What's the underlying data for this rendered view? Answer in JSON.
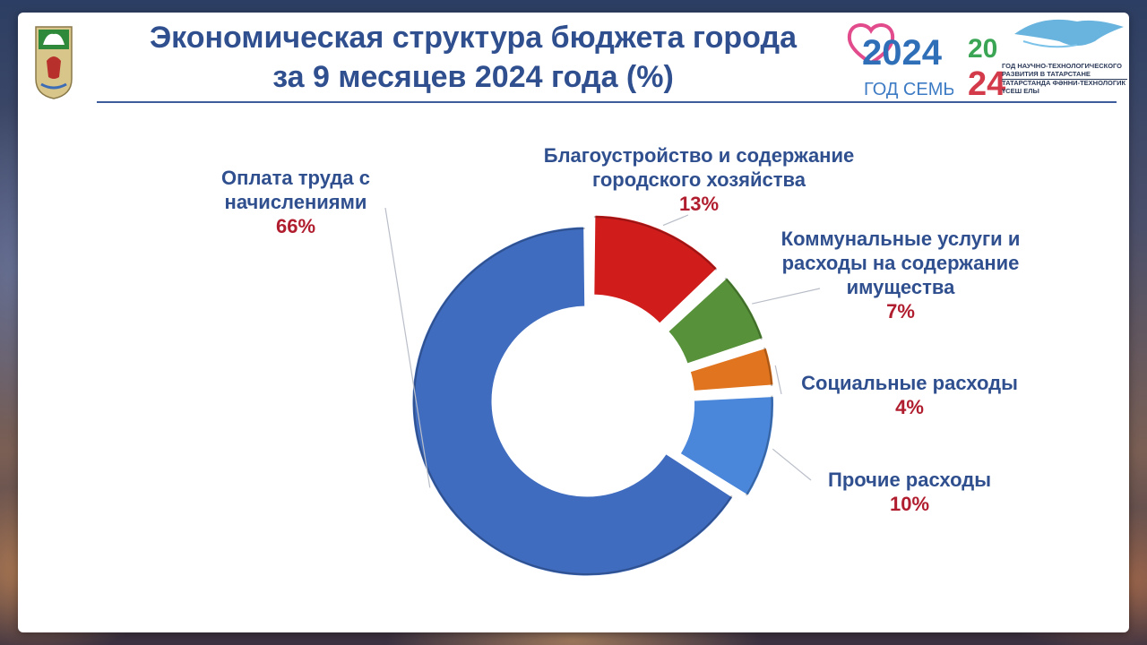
{
  "header": {
    "title_line1": "Экономическая структура бюджета города",
    "title_line2": "за 9 месяцев 2024 года (%)"
  },
  "logos": {
    "family_year": "2024",
    "family_text": "ГОД СЕМЬИ",
    "tech_year_top": "20",
    "tech_year_bottom": "24",
    "tech_text_ru": [
      "ГОД НАУЧНО-ТЕХНОЛОГИЧЕСКОГО",
      "РАЗВИТИЯ В ТАТАРСТАНЕ"
    ],
    "tech_text_tt": [
      "ТАТАРСТАНДА ФӘННИ-ТЕХНОЛОГИК",
      "ҮСЕШ ЕЛЫ"
    ]
  },
  "chart_data": {
    "type": "pie",
    "style": "donut",
    "title": "Экономическая структура бюджета города за 9 месяцев 2024 года (%)",
    "unit": "%",
    "categories": [
      "Благоустройство и содержание городского хозяйства",
      "Коммунальные услуги и расходы на содержание имущества",
      "Социальные расходы",
      "Прочие расходы",
      "Оплата труда с начислениями"
    ],
    "values": [
      13,
      7,
      4,
      10,
      66
    ],
    "value_labels": [
      "13%",
      "7%",
      "4%",
      "10%",
      "66%"
    ],
    "label_lines": [
      [
        "Благоустройство и содержание",
        "городского хозяйства"
      ],
      [
        "Коммунальные услуги и",
        "расходы на содержание",
        "имущества"
      ],
      [
        "Социальные расходы"
      ],
      [
        "Прочие расходы"
      ],
      [
        "Оплата труда с",
        "начислениями"
      ]
    ],
    "colors": [
      "#d11c1c",
      "#57923a",
      "#e0741f",
      "#4a86d9",
      "#3f6cbf"
    ],
    "exploded": [
      "Благоустройство и содержание городского хозяйства",
      "Коммунальные услуги и расходы на содержание имущества",
      "Социальные расходы",
      "Прочие расходы"
    ],
    "legend": "none"
  }
}
